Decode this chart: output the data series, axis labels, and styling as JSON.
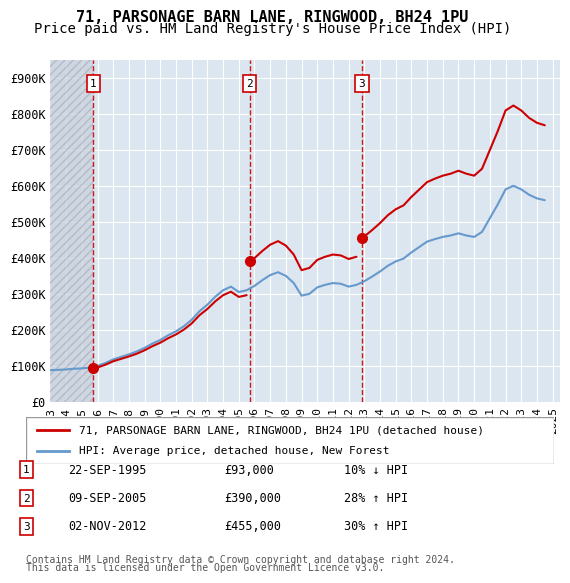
{
  "title": "71, PARSONAGE BARN LANE, RINGWOOD, BH24 1PU",
  "subtitle": "Price paid vs. HM Land Registry's House Price Index (HPI)",
  "ylabel_ticks": [
    "£0",
    "£100K",
    "£200K",
    "£300K",
    "£400K",
    "£500K",
    "£600K",
    "£700K",
    "£800K",
    "£900K"
  ],
  "ytick_values": [
    0,
    100000,
    200000,
    300000,
    400000,
    500000,
    600000,
    700000,
    800000,
    900000
  ],
  "ylim": [
    0,
    950000
  ],
  "xlim_start": 1993.0,
  "xlim_end": 2025.5,
  "purchases": [
    {
      "date": 1995.73,
      "price": 93000,
      "label": "1",
      "date_str": "22-SEP-1995",
      "price_str": "£93,000",
      "hpi_str": "10% ↓ HPI"
    },
    {
      "date": 2005.69,
      "price": 390000,
      "label": "2",
      "date_str": "09-SEP-2005",
      "price_str": "£390,000",
      "hpi_str": "28% ↑ HPI"
    },
    {
      "date": 2012.84,
      "price": 455000,
      "label": "3",
      "date_str": "02-NOV-2012",
      "price_str": "£455,000",
      "hpi_str": "30% ↑ HPI"
    }
  ],
  "legend_line1": "71, PARSONAGE BARN LANE, RINGWOOD, BH24 1PU (detached house)",
  "legend_line2": "HPI: Average price, detached house, New Forest",
  "footer1": "Contains HM Land Registry data © Crown copyright and database right 2024.",
  "footer2": "This data is licensed under the Open Government Licence v3.0.",
  "red_color": "#cc0000",
  "blue_color": "#6699cc",
  "bg_color": "#dce6f0",
  "hatch_color": "#bbbbcc",
  "grid_color": "#ffffff",
  "title_fontsize": 11,
  "subtitle_fontsize": 10,
  "tick_fontsize": 8.5,
  "xticks": [
    1993,
    1994,
    1995,
    1996,
    1997,
    1998,
    1999,
    2000,
    2001,
    2002,
    2003,
    2004,
    2005,
    2006,
    2007,
    2008,
    2009,
    2010,
    2011,
    2012,
    2013,
    2014,
    2015,
    2016,
    2017,
    2018,
    2019,
    2020,
    2021,
    2022,
    2023,
    2024,
    2025
  ]
}
